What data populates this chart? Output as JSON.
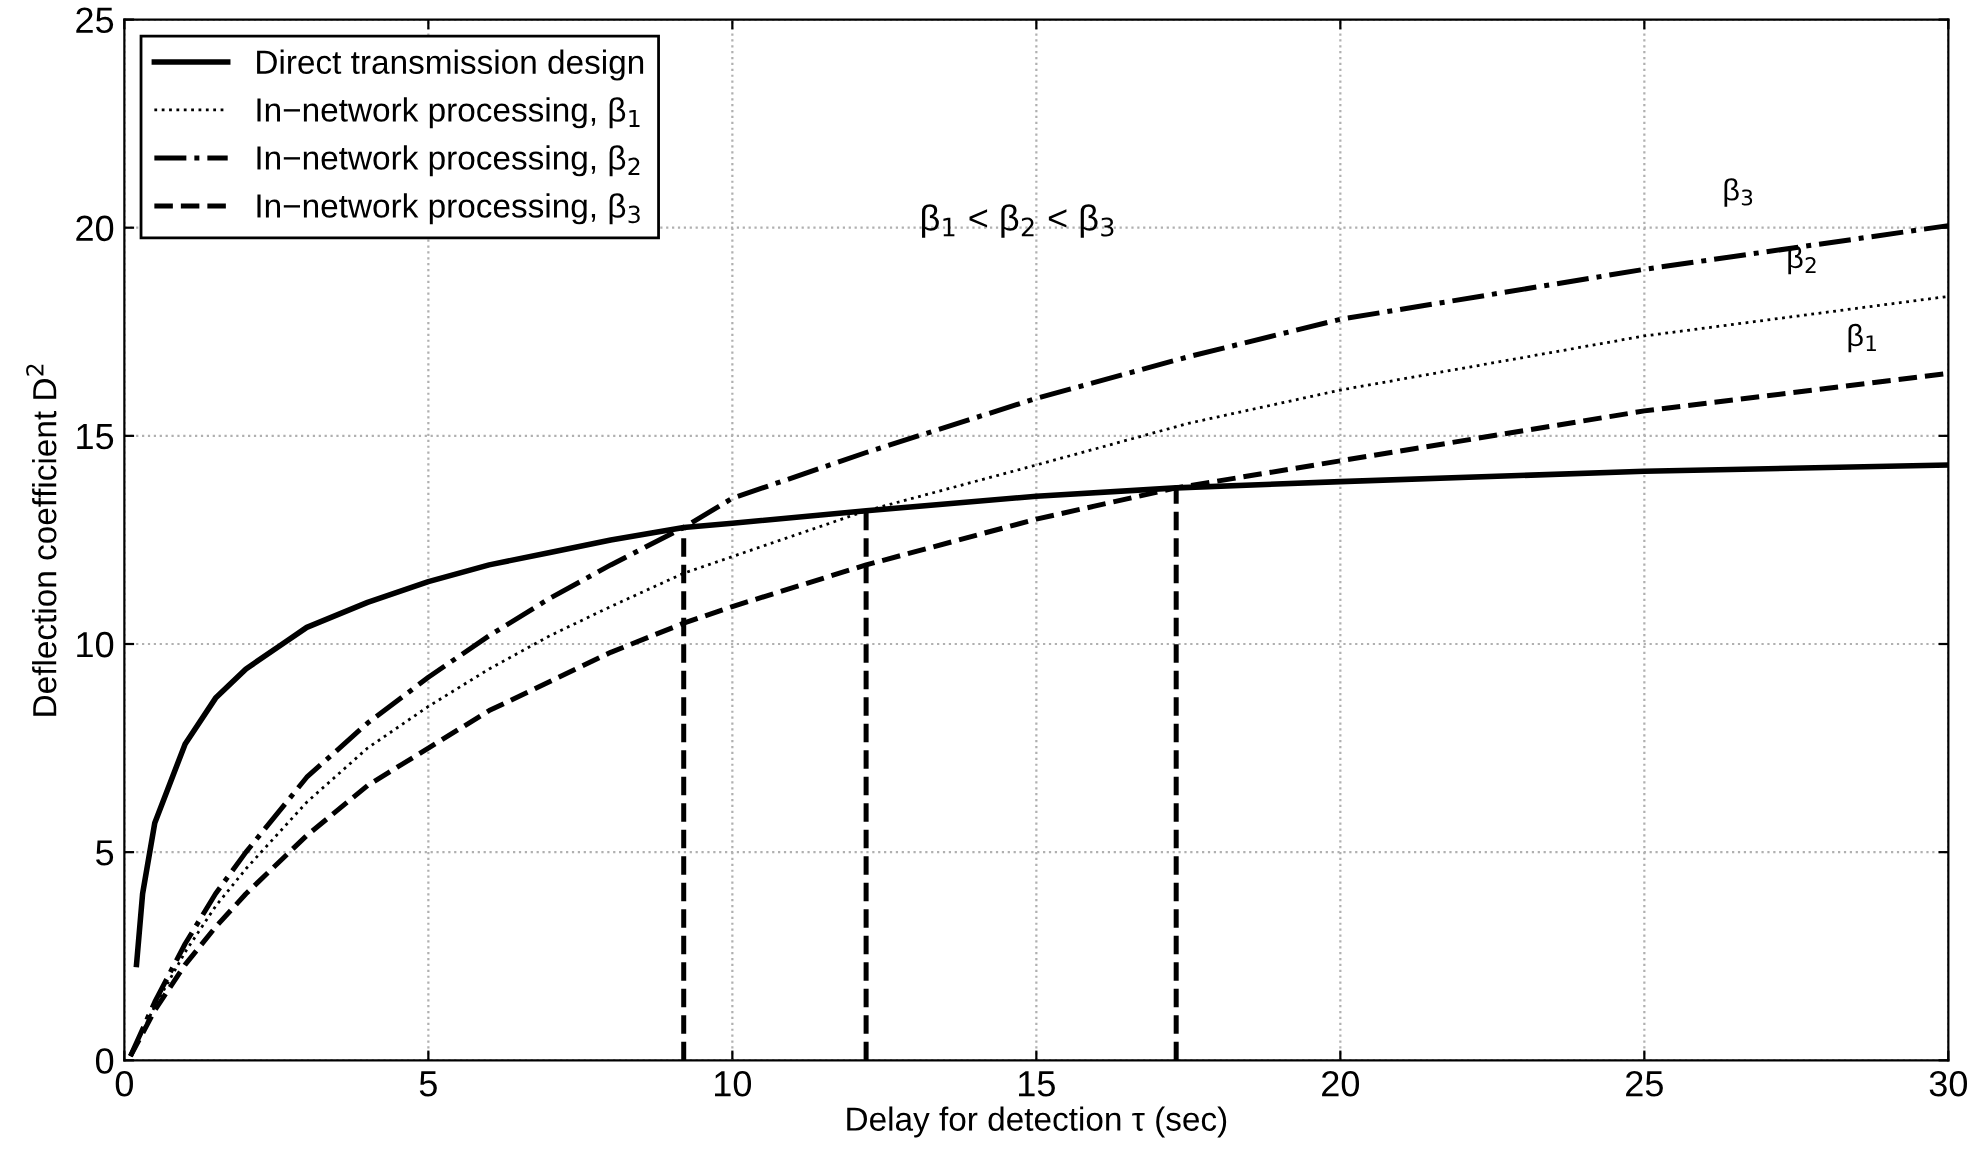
{
  "chart_data": {
    "type": "line",
    "xlabel": "Delay for detection τ (sec)",
    "ylabel": "Deflection coefficient D$^{2}$",
    "xlim": [
      0,
      30
    ],
    "ylim": [
      0,
      25
    ],
    "xticks": [
      0,
      5,
      10,
      15,
      20,
      25,
      30
    ],
    "yticks": [
      0,
      5,
      10,
      15,
      20,
      25
    ],
    "grid": true,
    "legend": "top left",
    "series": [
      {
        "name": "Direct transmission design",
        "color": "#000000",
        "line_style": "solid",
        "x": [
          0.2,
          0.3,
          0.5,
          1,
          1.5,
          2,
          2.6,
          3,
          4,
          5,
          6,
          7,
          8,
          9.2,
          10,
          12.2,
          15,
          17.3,
          20,
          25,
          30
        ],
        "values": [
          2.3,
          4.0,
          5.7,
          7.6,
          8.7,
          9.4,
          10,
          10.4,
          11.0,
          11.5,
          11.9,
          12.2,
          12.5,
          12.8,
          12.9,
          13.2,
          13.55,
          13.75,
          13.9,
          14.15,
          14.3
        ]
      },
      {
        "name": "In−network processing, β$_{1}$",
        "color": "#000000",
        "line_style": "dotted",
        "x": [
          0.1,
          0.5,
          1,
          1.5,
          2,
          3,
          4,
          5,
          6,
          7,
          8,
          9.2,
          10,
          12.2,
          15,
          17.5,
          20,
          25,
          30
        ],
        "values": [
          0.1,
          1.3,
          2.6,
          3.7,
          4.6,
          6.2,
          7.5,
          8.5,
          9.4,
          10.2,
          10.9,
          11.7,
          12.1,
          13.2,
          14.3,
          15.3,
          16.1,
          17.4,
          18.35
        ]
      },
      {
        "name": "In−network processing, β$_{2}$",
        "color": "#000000",
        "line_style": "dashdot",
        "x": [
          0.1,
          0.5,
          1,
          1.5,
          2,
          3,
          4,
          5,
          6,
          7,
          8,
          9.2,
          10,
          12.2,
          15,
          17.5,
          20,
          25,
          30
        ],
        "values": [
          0.1,
          1.4,
          2.8,
          4.0,
          5.0,
          6.8,
          8.1,
          9.2,
          10.2,
          11.1,
          11.9,
          12.8,
          13.5,
          14.6,
          15.9,
          16.9,
          17.8,
          19.0,
          20.05
        ]
      },
      {
        "name": "In−network processing, β$_{3}$",
        "color": "#000000",
        "line_style": "dashed",
        "x": [
          0.1,
          0.5,
          1,
          1.5,
          2,
          3,
          4,
          5,
          6,
          7,
          8,
          9.2,
          10,
          12.2,
          15,
          17.3,
          20,
          25,
          30
        ],
        "values": [
          0.1,
          1.2,
          2.3,
          3.2,
          4.0,
          5.4,
          6.6,
          7.5,
          8.4,
          9.1,
          9.8,
          10.5,
          10.9,
          11.9,
          13.0,
          13.75,
          14.4,
          15.6,
          16.5
        ]
      },
      {
        "color": "#000000",
        "line_style": "dashed",
        "x": [
          9.2,
          9.2
        ],
        "values": [
          0,
          12.8
        ]
      },
      {
        "color": "#000000",
        "line_style": "dashed",
        "x": [
          12.2,
          12.2
        ],
        "values": [
          0,
          13.2
        ]
      },
      {
        "color": "#000000",
        "line_style": "dashed",
        "x": [
          17.3,
          17.3
        ],
        "values": [
          0,
          13.75
        ]
      }
    ],
    "annotations": [
      "β$_{1}$ < β$_{2}$ < β$_{3}$",
      "β$_{3}$",
      "β$_{2}$",
      "β$_{1}$"
    ]
  }
}
